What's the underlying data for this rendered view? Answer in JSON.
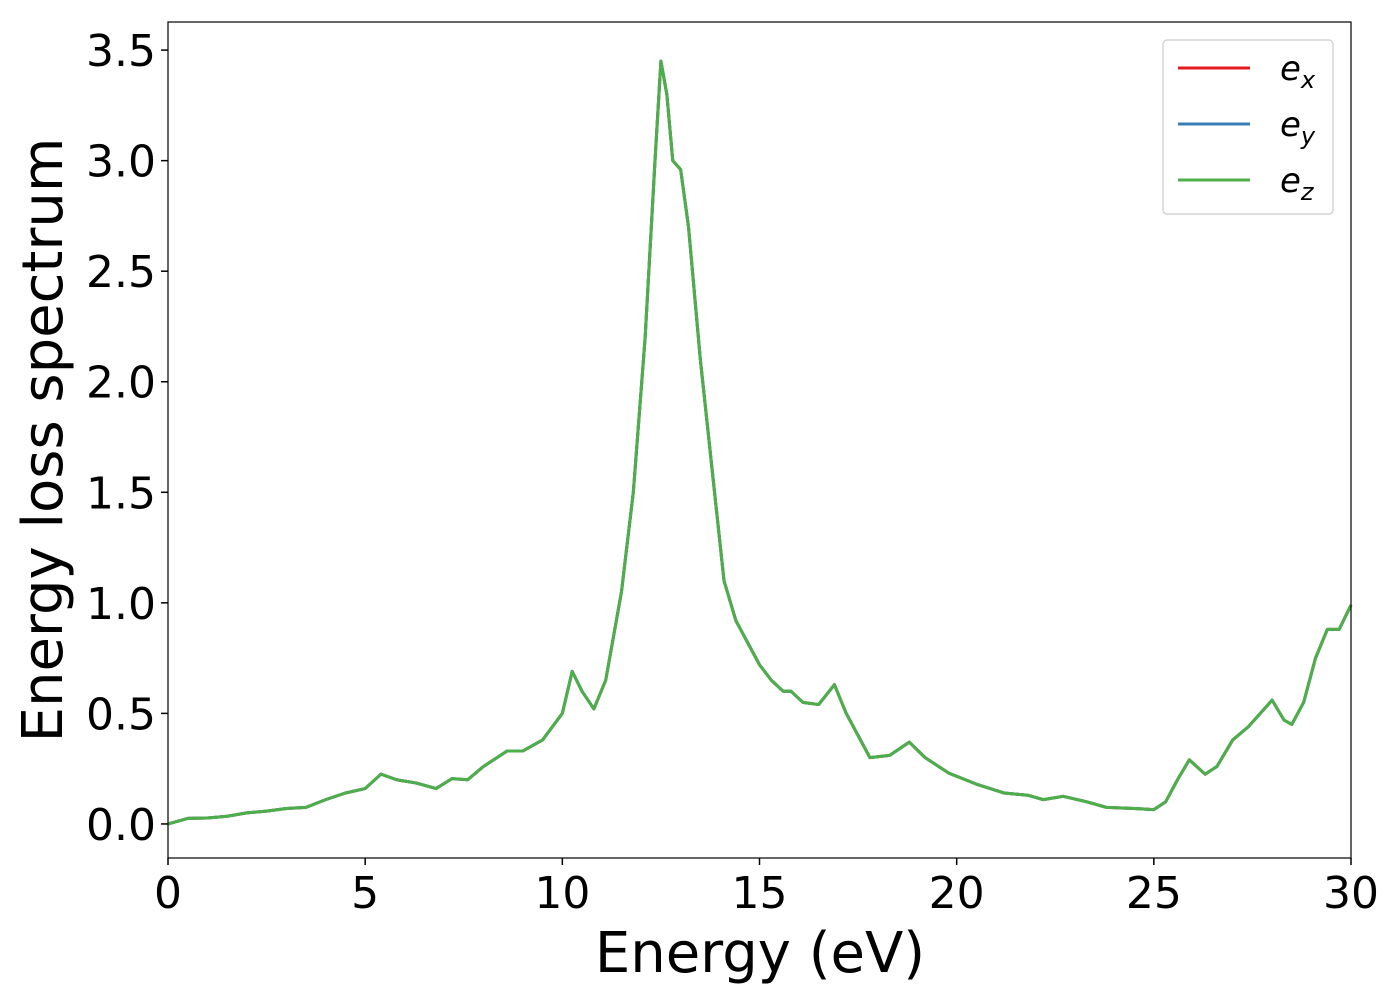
{
  "chart_data": {
    "type": "line",
    "xlabel": "Energy (eV)",
    "ylabel": "Energy loss spectrum",
    "x": [
      0,
      0.5,
      1,
      1.5,
      2,
      2.5,
      3,
      3.5,
      4,
      4.5,
      5,
      5.4,
      5.8,
      6.3,
      6.8,
      7.2,
      7.6,
      8,
      8.6,
      9,
      9.5,
      10,
      10.25,
      10.5,
      10.8,
      11.1,
      11.5,
      11.8,
      12.1,
      12.35,
      12.5,
      12.65,
      12.8,
      13,
      13.2,
      13.5,
      13.8,
      14.1,
      14.4,
      14.7,
      15,
      15.3,
      15.6,
      15.8,
      16.1,
      16.5,
      16.9,
      17.2,
      17.5,
      17.8,
      18.3,
      18.8,
      19.2,
      19.8,
      20.5,
      21.2,
      21.8,
      22.2,
      22.7,
      23.3,
      23.8,
      24.5,
      25,
      25.3,
      25.6,
      25.9,
      26.3,
      26.6,
      27,
      27.4,
      27.7,
      28,
      28.3,
      28.5,
      28.8,
      29.1,
      29.4,
      29.7,
      30
    ],
    "series": [
      {
        "name": "e_x",
        "color": "#e41a1c",
        "values": [
          0,
          0.025,
          0.027,
          0.035,
          0.05,
          0.058,
          0.07,
          0.075,
          0.11,
          0.14,
          0.16,
          0.225,
          0.2,
          0.185,
          0.16,
          0.205,
          0.2,
          0.26,
          0.33,
          0.33,
          0.38,
          0.5,
          0.69,
          0.6,
          0.52,
          0.65,
          1.05,
          1.5,
          2.2,
          3.0,
          3.45,
          3.3,
          3.0,
          2.96,
          2.7,
          2.1,
          1.6,
          1.1,
          0.92,
          0.82,
          0.72,
          0.65,
          0.6,
          0.6,
          0.55,
          0.54,
          0.63,
          0.5,
          0.4,
          0.3,
          0.31,
          0.37,
          0.3,
          0.23,
          0.18,
          0.14,
          0.13,
          0.11,
          0.125,
          0.1,
          0.075,
          0.07,
          0.065,
          0.1,
          0.2,
          0.29,
          0.225,
          0.26,
          0.38,
          0.44,
          0.5,
          0.56,
          0.47,
          0.45,
          0.55,
          0.75,
          0.88,
          0.88,
          0.99
        ]
      },
      {
        "name": "e_y",
        "color": "#377eb8",
        "values": [
          0,
          0.025,
          0.027,
          0.035,
          0.05,
          0.058,
          0.07,
          0.075,
          0.11,
          0.14,
          0.16,
          0.225,
          0.2,
          0.185,
          0.16,
          0.205,
          0.2,
          0.26,
          0.33,
          0.33,
          0.38,
          0.5,
          0.69,
          0.6,
          0.52,
          0.65,
          1.05,
          1.5,
          2.2,
          3.0,
          3.45,
          3.3,
          3.0,
          2.96,
          2.7,
          2.1,
          1.6,
          1.1,
          0.92,
          0.82,
          0.72,
          0.65,
          0.6,
          0.6,
          0.55,
          0.54,
          0.63,
          0.5,
          0.4,
          0.3,
          0.31,
          0.37,
          0.3,
          0.23,
          0.18,
          0.14,
          0.13,
          0.11,
          0.125,
          0.1,
          0.075,
          0.07,
          0.065,
          0.1,
          0.2,
          0.29,
          0.225,
          0.26,
          0.38,
          0.44,
          0.5,
          0.56,
          0.47,
          0.45,
          0.55,
          0.75,
          0.88,
          0.88,
          0.99
        ]
      },
      {
        "name": "e_z",
        "color": "#4daf4a",
        "values": [
          0,
          0.025,
          0.027,
          0.035,
          0.05,
          0.058,
          0.07,
          0.075,
          0.11,
          0.14,
          0.16,
          0.225,
          0.2,
          0.185,
          0.16,
          0.205,
          0.2,
          0.26,
          0.33,
          0.33,
          0.38,
          0.5,
          0.69,
          0.6,
          0.52,
          0.65,
          1.05,
          1.5,
          2.2,
          3.0,
          3.45,
          3.3,
          3.0,
          2.96,
          2.7,
          2.1,
          1.6,
          1.1,
          0.92,
          0.82,
          0.72,
          0.65,
          0.6,
          0.6,
          0.55,
          0.54,
          0.63,
          0.5,
          0.4,
          0.3,
          0.31,
          0.37,
          0.3,
          0.23,
          0.18,
          0.14,
          0.13,
          0.11,
          0.125,
          0.1,
          0.075,
          0.07,
          0.065,
          0.1,
          0.2,
          0.29,
          0.225,
          0.26,
          0.38,
          0.44,
          0.5,
          0.56,
          0.47,
          0.45,
          0.55,
          0.75,
          0.88,
          0.88,
          0.99
        ]
      }
    ],
    "xlim": [
      0,
      30
    ],
    "xticks": [
      0,
      5,
      10,
      15,
      20,
      25,
      30
    ],
    "ylim": [
      -0.154,
      3.627
    ],
    "yticks": [
      {
        "value": 0,
        "label": "0.0"
      },
      0.5,
      {
        "value": 1,
        "label": "1.0"
      },
      1.5,
      {
        "value": 2,
        "label": "2.0"
      },
      2.5,
      {
        "value": 3,
        "label": "3.0"
      },
      3.5
    ],
    "legend": "upper right",
    "grid": false
  }
}
